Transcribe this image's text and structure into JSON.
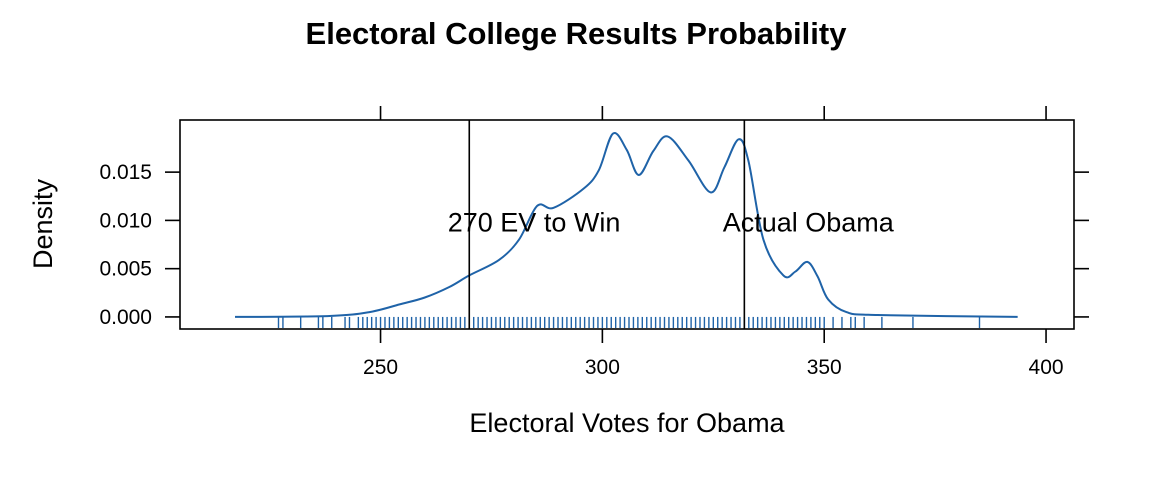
{
  "chart_data": {
    "type": "line",
    "subtype": "density-with-rug",
    "title": "Electoral College Results Probability",
    "xlabel": "Electoral Votes for Obama",
    "ylabel": "Density",
    "xlim": [
      204.8,
      406.3
    ],
    "ylim": [
      -0.00125,
      0.0204
    ],
    "xticks": [
      250,
      300,
      350,
      400
    ],
    "xtick_labels": [
      "250",
      "300",
      "350",
      "400"
    ],
    "yticks": [
      0,
      0.005,
      0.01,
      0.015
    ],
    "ytick_labels": [
      "0.000",
      "0.005",
      "0.010",
      "0.015"
    ],
    "grid": false,
    "line_color": "#1f63a8",
    "series": [
      {
        "name": "density",
        "x": [
          217.2,
          238.5,
          247.5,
          254.3,
          259.9,
          265.5,
          270,
          276.7,
          281.2,
          285.3,
          289,
          295.8,
          299.2,
          302.4,
          305.5,
          308.2,
          311.5,
          314.7,
          319.4,
          324.4,
          327.5,
          330.7,
          332.9,
          336.3,
          340.8,
          343.5,
          346.2,
          348.5,
          350.9,
          355,
          362,
          393.6
        ],
        "y": [
          0,
          0.0001,
          0.0005,
          0.0013,
          0.002,
          0.0031,
          0.0043,
          0.0059,
          0.008,
          0.0115,
          0.0113,
          0.0133,
          0.0152,
          0.019,
          0.0173,
          0.0147,
          0.0172,
          0.0187,
          0.0162,
          0.0129,
          0.0155,
          0.0184,
          0.0162,
          0.008,
          0.0043,
          0.0047,
          0.0057,
          0.0042,
          0.0018,
          0.0005,
          0.0002,
          0
        ]
      }
    ],
    "rug": [
      227,
      228,
      232,
      236,
      237,
      239,
      242,
      243,
      245,
      246,
      247,
      248,
      249,
      250,
      251,
      252,
      253,
      254,
      255,
      256,
      257,
      258,
      259,
      260,
      261,
      262,
      263,
      264,
      265,
      266,
      267,
      268,
      269,
      270,
      271,
      272,
      273,
      274,
      275,
      276,
      277,
      278,
      279,
      280,
      281,
      282,
      283,
      284,
      285,
      286,
      287,
      288,
      289,
      290,
      291,
      292,
      293,
      294,
      295,
      296,
      297,
      298,
      299,
      300,
      301,
      302,
      303,
      304,
      305,
      306,
      307,
      308,
      309,
      310,
      311,
      312,
      313,
      314,
      315,
      316,
      317,
      318,
      319,
      320,
      321,
      322,
      323,
      324,
      325,
      326,
      327,
      328,
      329,
      330,
      331,
      332,
      333,
      334,
      335,
      336,
      337,
      338,
      339,
      340,
      341,
      342,
      343,
      344,
      345,
      346,
      347,
      348,
      349,
      350,
      352,
      354,
      356,
      357,
      359,
      363,
      370,
      385
    ],
    "reference_lines": [
      {
        "x": 270,
        "label": "270 EV to Win",
        "label_x": 284.6,
        "label_y": 0.0098
      },
      {
        "x": 332,
        "label": "Actual Obama",
        "label_x": 346.4,
        "label_y": 0.0098
      }
    ]
  }
}
